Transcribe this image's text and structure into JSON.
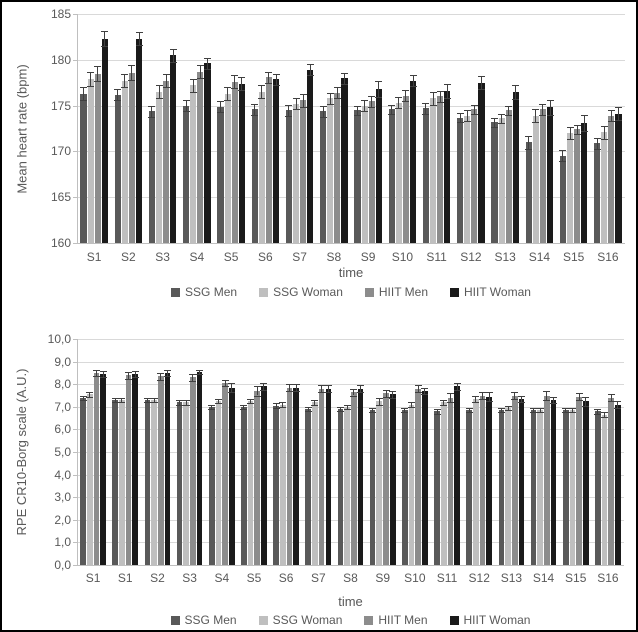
{
  "style": {
    "background": "#ffffff",
    "frame_color": "#000000",
    "grid_color": "#d9d9d9",
    "axis_color": "#bfbfbf",
    "text_color": "#595959",
    "error_color": "#404040"
  },
  "chart_data": [
    {
      "type": "bar",
      "title": "",
      "xlabel": "time",
      "ylabel": "Mean heart rate  (bpm)",
      "ylim": [
        160,
        185
      ],
      "ytick_labels": [
        "160",
        "165",
        "170",
        "175",
        "180",
        "185"
      ],
      "grid": true,
      "legend_position": "bottom",
      "categories": [
        "S1",
        "S2",
        "S3",
        "S4",
        "S5",
        "S6",
        "S7",
        "S8",
        "S9",
        "S10",
        "S11",
        "S12",
        "S13",
        "S14",
        "S15",
        "S16"
      ],
      "series": [
        {
          "name": "SSG Men",
          "color": "#595959",
          "values": [
            176.3,
            176.2,
            174.4,
            175.0,
            174.9,
            174.6,
            174.5,
            174.4,
            174.5,
            174.6,
            174.7,
            173.7,
            173.2,
            171.0,
            169.5,
            170.9
          ],
          "errors": [
            0.7,
            0.6,
            0.6,
            0.6,
            0.6,
            0.6,
            0.6,
            0.6,
            0.5,
            0.5,
            0.6,
            0.5,
            0.5,
            0.7,
            0.6,
            0.6
          ]
        },
        {
          "name": "SSG Woman",
          "color": "#bfbfbf",
          "values": [
            177.9,
            177.7,
            176.5,
            177.2,
            176.3,
            176.5,
            175.2,
            175.8,
            175.0,
            175.3,
            175.8,
            173.9,
            173.6,
            173.9,
            172.0,
            172.1
          ],
          "errors": [
            0.8,
            0.7,
            0.7,
            0.7,
            0.7,
            0.7,
            0.6,
            0.6,
            0.6,
            0.6,
            0.7,
            0.6,
            0.5,
            0.7,
            0.7,
            0.7
          ]
        },
        {
          "name": "HIIT Men",
          "color": "#8c8c8c",
          "values": [
            178.5,
            178.6,
            177.7,
            178.7,
            177.6,
            178.1,
            175.6,
            176.4,
            175.5,
            176.1,
            176.0,
            174.6,
            174.5,
            174.6,
            172.4,
            173.9
          ],
          "errors": [
            0.8,
            0.8,
            0.7,
            0.7,
            0.7,
            0.6,
            0.7,
            0.6,
            0.6,
            0.6,
            0.6,
            0.5,
            0.5,
            0.6,
            0.5,
            0.6
          ]
        },
        {
          "name": "HIIT Woman",
          "color": "#1a1a1a",
          "values": [
            182.3,
            182.3,
            180.5,
            179.6,
            177.4,
            177.9,
            178.9,
            178.0,
            176.8,
            177.7,
            176.6,
            177.5,
            176.5,
            174.8,
            173.1,
            174.1
          ],
          "errors": [
            0.8,
            0.7,
            0.7,
            0.6,
            0.7,
            0.6,
            0.6,
            0.6,
            0.9,
            0.6,
            0.8,
            0.7,
            0.8,
            0.8,
            0.9,
            0.7
          ]
        }
      ]
    },
    {
      "type": "bar",
      "title": "",
      "xlabel": "time",
      "ylabel": "RPE CR10-Borg scale (A.U.)",
      "ylim": [
        0,
        10
      ],
      "ytick_labels": [
        "0,0",
        "1,0",
        "2,0",
        "3,0",
        "4,0",
        "5,0",
        "6,0",
        "7,0",
        "8,0",
        "9,0",
        "10,0"
      ],
      "grid": true,
      "legend_position": "bottom",
      "categories": [
        "S1",
        "S1",
        "S2",
        "S3",
        "S4",
        "S5",
        "S6",
        "S7",
        "S8",
        "S9",
        "S10",
        "S11",
        "S12",
        "S13",
        "S14",
        "S15",
        "S16"
      ],
      "series": [
        {
          "name": "SSG Men",
          "color": "#595959",
          "values": [
            7.4,
            7.3,
            7.3,
            7.2,
            7.0,
            7.0,
            7.05,
            6.9,
            6.9,
            6.85,
            6.85,
            6.8,
            6.85,
            6.85,
            6.85,
            6.85,
            6.8
          ],
          "errors": [
            0.1,
            0.1,
            0.1,
            0.1,
            0.1,
            0.1,
            0.1,
            0.1,
            0.1,
            0.1,
            0.1,
            0.1,
            0.1,
            0.1,
            0.1,
            0.1,
            0.1
          ]
        },
        {
          "name": "SSG Woman",
          "color": "#bfbfbf",
          "values": [
            7.55,
            7.3,
            7.3,
            7.2,
            7.25,
            7.25,
            7.1,
            7.2,
            7.0,
            7.25,
            7.1,
            7.2,
            7.35,
            6.95,
            6.85,
            6.85,
            6.65
          ],
          "errors": [
            0.1,
            0.1,
            0.1,
            0.1,
            0.1,
            0.1,
            0.1,
            0.1,
            0.1,
            0.15,
            0.1,
            0.1,
            0.15,
            0.1,
            0.1,
            0.1,
            0.1
          ]
        },
        {
          "name": "HIIT Men",
          "color": "#8c8c8c",
          "values": [
            8.5,
            8.4,
            8.35,
            8.3,
            8.05,
            7.7,
            7.85,
            7.8,
            7.65,
            7.6,
            7.8,
            7.4,
            7.5,
            7.5,
            7.5,
            7.45,
            7.4
          ],
          "errors": [
            0.15,
            0.15,
            0.15,
            0.15,
            0.15,
            0.2,
            0.15,
            0.15,
            0.15,
            0.15,
            0.15,
            0.2,
            0.15,
            0.15,
            0.2,
            0.15,
            0.15
          ]
        },
        {
          "name": "HIIT Woman",
          "color": "#1a1a1a",
          "values": [
            8.45,
            8.45,
            8.5,
            8.55,
            7.85,
            7.9,
            7.85,
            7.8,
            7.8,
            7.55,
            7.7,
            7.9,
            7.45,
            7.35,
            7.3,
            7.25,
            7.1
          ],
          "errors": [
            0.15,
            0.15,
            0.15,
            0.1,
            0.2,
            0.15,
            0.15,
            0.15,
            0.15,
            0.15,
            0.15,
            0.15,
            0.2,
            0.15,
            0.15,
            0.2,
            0.15
          ]
        }
      ]
    }
  ]
}
